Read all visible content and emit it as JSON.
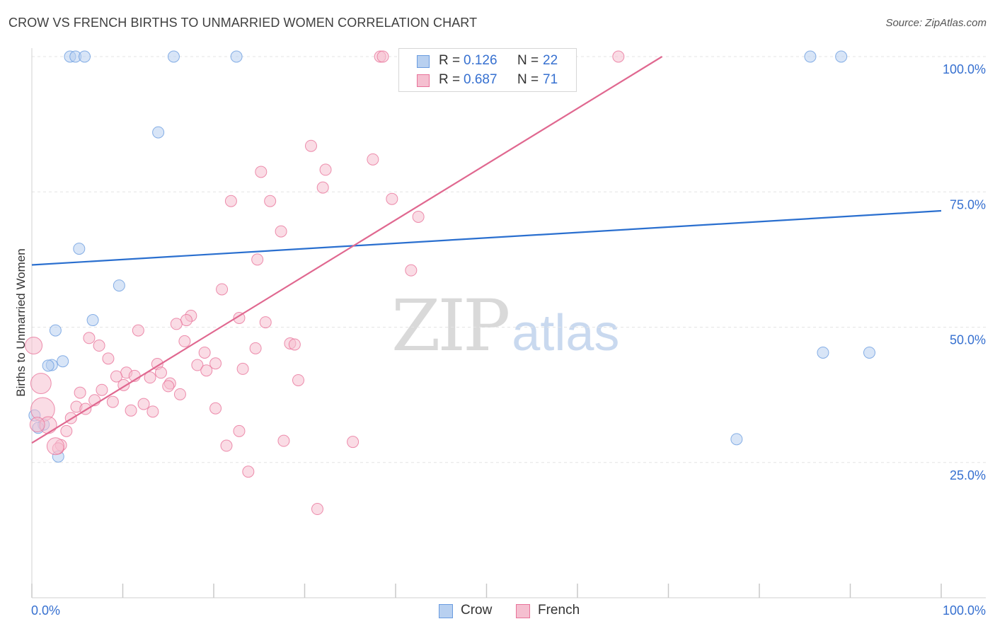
{
  "title": "CROW VS FRENCH BIRTHS TO UNMARRIED WOMEN CORRELATION CHART",
  "source": "Source: ZipAtlas.com",
  "watermark": {
    "part1": "ZIP",
    "part2": "atlas"
  },
  "colors": {
    "crow": "#6a9ce0",
    "crow_fill": "#b8d0f0",
    "french": "#e8739a",
    "french_fill": "#f5bfd0",
    "crow_line": "#2a6fcf",
    "french_line": "#e06890",
    "axis_text": "#3670d0"
  },
  "legend": {
    "crow": {
      "r_label": "R =",
      "r_value": "0.126",
      "n_label": "N =",
      "n_value": "22"
    },
    "french": {
      "r_label": "R =",
      "r_value": "0.687",
      "n_label": "N =",
      "n_value": "71"
    }
  },
  "chart_data": {
    "type": "scatter",
    "title": "CROW VS FRENCH BIRTHS TO UNMARRIED WOMEN CORRELATION CHART",
    "xlabel": "",
    "ylabel": "Births to Unmarried Women",
    "xlim": [
      0,
      100
    ],
    "ylim": [
      0,
      100
    ],
    "x_tick_labels": [
      "0.0%",
      "100.0%"
    ],
    "y_ticks": [
      25,
      50,
      75,
      100
    ],
    "y_tick_labels": [
      "25.0%",
      "50.0%",
      "75.0%",
      "100.0%"
    ],
    "legend_position": "top-center",
    "series": [
      {
        "name": "Crow",
        "color": "#6a9ce0",
        "trend": {
          "x": [
            0,
            100
          ],
          "y": [
            61.5,
            71.5
          ]
        },
        "points": [
          {
            "x": 4.2,
            "y": 100,
            "s": 1
          },
          {
            "x": 4.8,
            "y": 100,
            "s": 1
          },
          {
            "x": 5.8,
            "y": 100,
            "s": 1
          },
          {
            "x": 15.6,
            "y": 100,
            "s": 1
          },
          {
            "x": 22.5,
            "y": 100,
            "s": 1
          },
          {
            "x": 85.6,
            "y": 100,
            "s": 1
          },
          {
            "x": 89.0,
            "y": 100,
            "s": 1
          },
          {
            "x": 13.9,
            "y": 86,
            "s": 1
          },
          {
            "x": 5.2,
            "y": 64.5,
            "s": 1
          },
          {
            "x": 9.6,
            "y": 57.7,
            "s": 1
          },
          {
            "x": 6.7,
            "y": 51.3,
            "s": 1
          },
          {
            "x": 2.6,
            "y": 49.4,
            "s": 1
          },
          {
            "x": 3.4,
            "y": 43.7,
            "s": 1
          },
          {
            "x": 2.2,
            "y": 43.0,
            "s": 1
          },
          {
            "x": 1.8,
            "y": 42.9,
            "s": 1
          },
          {
            "x": 0.3,
            "y": 33.7,
            "s": 1
          },
          {
            "x": 1.3,
            "y": 32.0,
            "s": 1
          },
          {
            "x": 0.7,
            "y": 31.4,
            "s": 1
          },
          {
            "x": 2.9,
            "y": 26.1,
            "s": 1
          },
          {
            "x": 87.0,
            "y": 45.3,
            "s": 1
          },
          {
            "x": 92.1,
            "y": 45.3,
            "s": 1
          },
          {
            "x": 77.5,
            "y": 29.3,
            "s": 1
          }
        ]
      },
      {
        "name": "French",
        "color": "#e8739a",
        "trend": {
          "x": [
            0,
            69.3
          ],
          "y": [
            28.6,
            100
          ]
        },
        "points": [
          {
            "x": 38.3,
            "y": 100,
            "s": 1
          },
          {
            "x": 38.6,
            "y": 100,
            "s": 1
          },
          {
            "x": 64.5,
            "y": 100,
            "s": 1
          },
          {
            "x": 30.7,
            "y": 83.5,
            "s": 1
          },
          {
            "x": 37.5,
            "y": 81.0,
            "s": 1
          },
          {
            "x": 32.3,
            "y": 79.1,
            "s": 1
          },
          {
            "x": 25.2,
            "y": 78.7,
            "s": 1
          },
          {
            "x": 32.0,
            "y": 75.8,
            "s": 1
          },
          {
            "x": 21.9,
            "y": 73.3,
            "s": 1
          },
          {
            "x": 26.2,
            "y": 73.3,
            "s": 1
          },
          {
            "x": 39.6,
            "y": 73.7,
            "s": 1
          },
          {
            "x": 42.5,
            "y": 70.4,
            "s": 1
          },
          {
            "x": 27.4,
            "y": 67.7,
            "s": 1
          },
          {
            "x": 24.8,
            "y": 62.5,
            "s": 1
          },
          {
            "x": 41.7,
            "y": 60.5,
            "s": 1
          },
          {
            "x": 20.9,
            "y": 57.0,
            "s": 1
          },
          {
            "x": 17.5,
            "y": 52.1,
            "s": 1
          },
          {
            "x": 17.0,
            "y": 51.3,
            "s": 1
          },
          {
            "x": 22.8,
            "y": 51.7,
            "s": 1
          },
          {
            "x": 15.9,
            "y": 50.6,
            "s": 1
          },
          {
            "x": 25.7,
            "y": 50.9,
            "s": 1
          },
          {
            "x": 11.7,
            "y": 49.4,
            "s": 1
          },
          {
            "x": 6.3,
            "y": 48.0,
            "s": 1
          },
          {
            "x": 16.8,
            "y": 47.4,
            "s": 1
          },
          {
            "x": 28.4,
            "y": 47.0,
            "s": 1
          },
          {
            "x": 28.9,
            "y": 46.8,
            "s": 1
          },
          {
            "x": 7.4,
            "y": 46.6,
            "s": 1
          },
          {
            "x": 24.6,
            "y": 46.1,
            "s": 1
          },
          {
            "x": 19.0,
            "y": 45.3,
            "s": 1
          },
          {
            "x": 8.4,
            "y": 44.2,
            "s": 1
          },
          {
            "x": 13.8,
            "y": 43.2,
            "s": 1
          },
          {
            "x": 18.2,
            "y": 43.0,
            "s": 1
          },
          {
            "x": 20.2,
            "y": 43.3,
            "s": 1
          },
          {
            "x": 23.2,
            "y": 42.3,
            "s": 1
          },
          {
            "x": 19.2,
            "y": 42.0,
            "s": 1
          },
          {
            "x": 14.2,
            "y": 41.6,
            "s": 1
          },
          {
            "x": 10.4,
            "y": 41.6,
            "s": 1
          },
          {
            "x": 11.3,
            "y": 41.0,
            "s": 1
          },
          {
            "x": 13.0,
            "y": 40.7,
            "s": 1
          },
          {
            "x": 9.3,
            "y": 40.9,
            "s": 1
          },
          {
            "x": 29.3,
            "y": 40.2,
            "s": 1
          },
          {
            "x": 15.2,
            "y": 39.6,
            "s": 1
          },
          {
            "x": 15.0,
            "y": 39.1,
            "s": 1
          },
          {
            "x": 10.1,
            "y": 39.3,
            "s": 1
          },
          {
            "x": 7.7,
            "y": 38.4,
            "s": 1
          },
          {
            "x": 5.3,
            "y": 37.9,
            "s": 1
          },
          {
            "x": 16.3,
            "y": 37.6,
            "s": 1
          },
          {
            "x": 6.9,
            "y": 36.5,
            "s": 1
          },
          {
            "x": 8.9,
            "y": 36.2,
            "s": 1
          },
          {
            "x": 12.3,
            "y": 35.8,
            "s": 1
          },
          {
            "x": 4.9,
            "y": 35.3,
            "s": 1
          },
          {
            "x": 5.9,
            "y": 34.9,
            "s": 1
          },
          {
            "x": 20.2,
            "y": 35.0,
            "s": 1
          },
          {
            "x": 10.9,
            "y": 34.6,
            "s": 1
          },
          {
            "x": 13.3,
            "y": 34.4,
            "s": 1
          },
          {
            "x": 4.3,
            "y": 33.2,
            "s": 1
          },
          {
            "x": 3.8,
            "y": 30.8,
            "s": 1
          },
          {
            "x": 22.8,
            "y": 30.8,
            "s": 1
          },
          {
            "x": 27.7,
            "y": 29.0,
            "s": 1
          },
          {
            "x": 35.3,
            "y": 28.8,
            "s": 1
          },
          {
            "x": 21.4,
            "y": 28.1,
            "s": 1
          },
          {
            "x": 3.2,
            "y": 28.2,
            "s": 1
          },
          {
            "x": 2.9,
            "y": 27.6,
            "s": 1
          },
          {
            "x": 23.8,
            "y": 23.3,
            "s": 1
          },
          {
            "x": 31.4,
            "y": 16.4,
            "s": 1
          },
          {
            "x": 0.2,
            "y": 46.6,
            "s": 1.5
          },
          {
            "x": 1.0,
            "y": 39.6,
            "s": 1.8
          },
          {
            "x": 1.2,
            "y": 34.8,
            "s": 2.1
          },
          {
            "x": 1.8,
            "y": 31.9,
            "s": 1.5
          },
          {
            "x": 2.6,
            "y": 28.0,
            "s": 1.5
          },
          {
            "x": 0.6,
            "y": 32.0,
            "s": 1.3
          }
        ]
      }
    ]
  },
  "bottom_legend": {
    "crow_label": "Crow",
    "french_label": "French"
  }
}
